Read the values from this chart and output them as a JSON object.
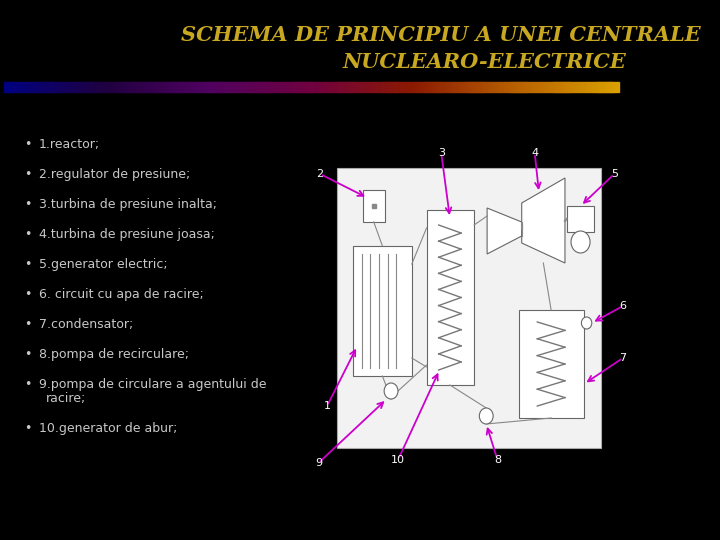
{
  "title_line1": "SCHEMA DE PRINCIPIU A UNEI CENTRALE",
  "title_line2": "NUCLEARO-ELECTRICE",
  "title_color": "#C8A820",
  "title_fontsize": 15,
  "bg_color": "#000000",
  "gradient_colors": [
    "#000080",
    "#200040",
    "#500060",
    "#700040",
    "#8B1a00",
    "#B86000",
    "#DAA000"
  ],
  "bullet_items": [
    "1.reactor;",
    "2.regulator de presiune;",
    "3.turbina de presiune inalta;",
    "4.turbina de presiune joasa;",
    "5.generator electric;",
    "6. circuit cu apa de racire;",
    "7.condensator;",
    "8.pompa de recirculare;",
    "9.pompa de circulare a agentului de\nracire;",
    "10.generator de abur;"
  ],
  "text_color": "#c8c8c8",
  "arrow_color": "#cc00cc",
  "diagram_bg": "#f0f0f0"
}
